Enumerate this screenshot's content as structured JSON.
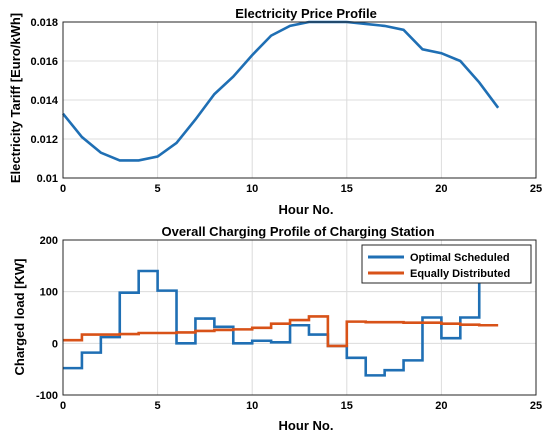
{
  "chart_data": [
    {
      "type": "line",
      "title": "Electricity Price Profile",
      "xlabel": "Hour No.",
      "ylabel": "Electricity Tariff [Euro/kWh]",
      "xlim": [
        0,
        25
      ],
      "ylim": [
        0.01,
        0.018
      ],
      "xticks": [
        "0",
        "5",
        "10",
        "15",
        "20",
        "25"
      ],
      "yticks": [
        "0.01",
        "0.012",
        "0.014",
        "0.016",
        "0.018"
      ],
      "grid": true,
      "series": [
        {
          "color": "#1f6fb4",
          "x": [
            0,
            1,
            2,
            3,
            4,
            5,
            6,
            7,
            8,
            9,
            10,
            11,
            12,
            13,
            14,
            15,
            16,
            17,
            18,
            19,
            20,
            21,
            22,
            23
          ],
          "y": [
            0.0133,
            0.0121,
            0.0113,
            0.0109,
            0.0109,
            0.0111,
            0.0118,
            0.013,
            0.0143,
            0.0152,
            0.0163,
            0.0173,
            0.0178,
            0.018,
            0.018,
            0.018,
            0.0179,
            0.0178,
            0.0176,
            0.0166,
            0.0164,
            0.016,
            0.0149,
            0.0136
          ]
        }
      ]
    },
    {
      "type": "line",
      "title": "Overall Charging Profile of Charging Station",
      "xlabel": "Hour No.",
      "ylabel": "Charged load [KW]",
      "xlim": [
        0,
        25
      ],
      "ylim": [
        -100,
        200
      ],
      "xticks": [
        "0",
        "5",
        "10",
        "15",
        "20",
        "25"
      ],
      "yticks": [
        "-100",
        "0",
        "100",
        "200"
      ],
      "grid": true,
      "legend_position": "top-right",
      "series": [
        {
          "name": "Optimal Scheduled",
          "color": "#1f6fb4",
          "step": true,
          "x": [
            0,
            1,
            2,
            3,
            4,
            5,
            6,
            7,
            8,
            9,
            10,
            11,
            12,
            13,
            14,
            15,
            16,
            17,
            18,
            19,
            20,
            21,
            22
          ],
          "y": [
            -48,
            -18,
            12,
            98,
            140,
            102,
            0,
            48,
            32,
            0,
            5,
            2,
            35,
            17,
            -5,
            -28,
            -62,
            -52,
            -33,
            50,
            10,
            50,
            133
          ]
        },
        {
          "name": "Equally Distributed",
          "color": "#d85218",
          "step": true,
          "x": [
            0,
            1,
            2,
            3,
            4,
            5,
            6,
            7,
            8,
            9,
            10,
            11,
            12,
            13,
            14,
            15,
            16,
            17,
            18,
            19,
            20,
            21,
            22
          ],
          "y": [
            6,
            17,
            17,
            18,
            20,
            20,
            21,
            24,
            26,
            27,
            30,
            38,
            45,
            52,
            -5,
            42,
            41,
            41,
            40,
            40,
            38,
            36,
            35
          ]
        }
      ]
    }
  ]
}
